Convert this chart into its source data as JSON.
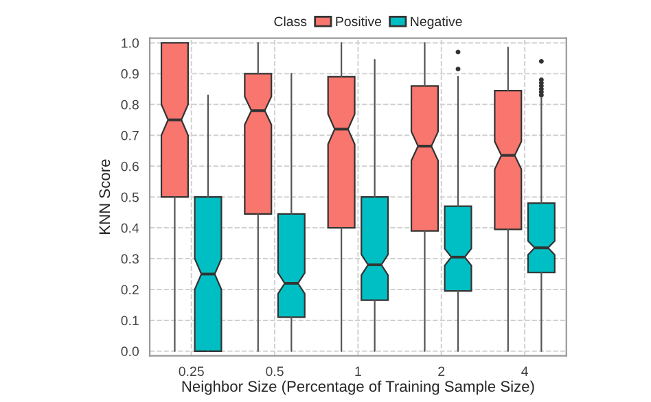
{
  "chart_data": {
    "type": "box",
    "xlabel": "Neighbor Size (Percentage of Training Sample Size)",
    "ylabel": "KNN Score",
    "legend_title": "Class",
    "categories": [
      "0.25",
      "0.5",
      "1",
      "2",
      "4"
    ],
    "ylim": [
      -0.015,
      1.015
    ],
    "yticks": [
      {
        "value": 0,
        "label": "0.0"
      },
      0.1,
      0.2,
      0.3,
      0.4,
      0.5,
      0.6,
      0.7,
      0.8,
      0.9,
      {
        "value": 1,
        "label": "1.0"
      }
    ],
    "grid": true,
    "legend": "top",
    "series": [
      {
        "name": "Positive",
        "color": "#f8766d",
        "boxes": [
          {
            "low": 0,
            "q1": 0.5,
            "median": 0.75,
            "q3": 1.0,
            "high": 1.0
          },
          {
            "low": 0,
            "q1": 0.445,
            "median": 0.78,
            "q3": 0.9,
            "high": 1.0
          },
          {
            "low": 0,
            "q1": 0.4,
            "median": 0.72,
            "q3": 0.89,
            "high": 1.0
          },
          {
            "low": 0,
            "q1": 0.39,
            "median": 0.665,
            "q3": 0.86,
            "high": 1.0
          },
          {
            "low": 0,
            "q1": 0.395,
            "median": 0.635,
            "q3": 0.845,
            "high": 0.985
          }
        ]
      },
      {
        "name": "Negative",
        "color": "#00bfc4",
        "boxes": [
          {
            "low": 0,
            "q1": 0,
            "median": 0.25,
            "q3": 0.5,
            "high": 0.83
          },
          {
            "low": 0,
            "q1": 0.11,
            "median": 0.22,
            "q3": 0.445,
            "high": 0.9
          },
          {
            "low": 0,
            "q1": 0.165,
            "median": 0.28,
            "q3": 0.5,
            "high": 0.945
          },
          {
            "low": 0,
            "q1": 0.195,
            "median": 0.305,
            "q3": 0.47,
            "high": 0.89,
            "outliers": [
              0.915,
              0.97
            ]
          },
          {
            "low": 0,
            "q1": 0.255,
            "median": 0.335,
            "q3": 0.48,
            "high": 0.82,
            "outliers": [
              0.83,
              0.84,
              0.85,
              0.86,
              0.87,
              0.88,
              0.94
            ]
          }
        ]
      }
    ]
  }
}
